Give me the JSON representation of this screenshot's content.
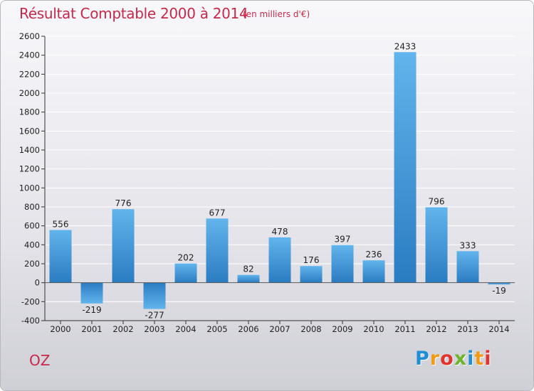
{
  "title": "Résultat Comptable 2000 à 2014",
  "subtitle": "(en milliers d'€)",
  "commune": "OZ",
  "brand": {
    "letters": [
      "P",
      "r",
      "o",
      "x",
      "i",
      "t",
      "i"
    ],
    "colors": [
      "#1e8fd6",
      "#f29a18",
      "#e2342c",
      "#6db52c",
      "#1e8fd6",
      "#f29a18",
      "#e2342c"
    ]
  },
  "colors": {
    "title": "#c8284a",
    "bar_light": "#5eb0ea",
    "bar_dark": "#2c7fc4",
    "axis": "#333333",
    "grid": "#ffffff"
  },
  "chart_data": {
    "type": "bar",
    "title": "Résultat Comptable 2000 à 2014",
    "xlabel": "",
    "ylabel": "en milliers d'€",
    "ylim": [
      -400,
      2600
    ],
    "ytick_step": 200,
    "grid": true,
    "categories": [
      "2000",
      "2001",
      "2002",
      "2003",
      "2004",
      "2005",
      "2006",
      "2007",
      "2008",
      "2009",
      "2010",
      "2011",
      "2012",
      "2013",
      "2014"
    ],
    "values": [
      556,
      -219,
      776,
      -277,
      202,
      677,
      82,
      478,
      176,
      397,
      236,
      2433,
      796,
      333,
      -19
    ]
  }
}
